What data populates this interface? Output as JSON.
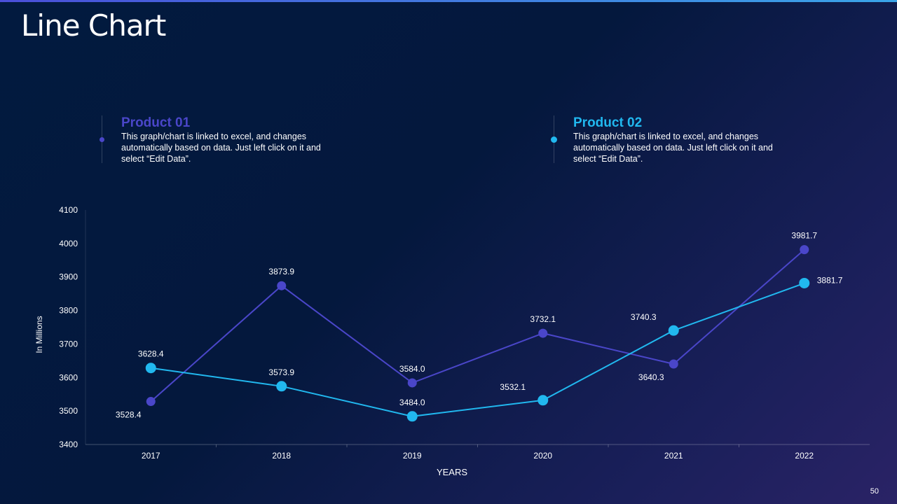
{
  "title": "Line Chart",
  "page_number": "50",
  "legend": [
    {
      "name": "Product 01",
      "description": "This graph/chart is linked to excel, and changes automatically based on data. Just left click on it and select “Edit Data”.",
      "color": "#4a46c9"
    },
    {
      "name": "Product 02",
      "description": "This graph/chart is linked to excel, and changes automatically based on data. Just left click on it and select “Edit Data”.",
      "color": "#21b8ef"
    }
  ],
  "chart_data": {
    "type": "line",
    "categories": [
      "2017",
      "2018",
      "2019",
      "2020",
      "2021",
      "2022"
    ],
    "series": [
      {
        "name": "Product 01",
        "values": [
          3528.4,
          3873.9,
          3584.0,
          3732.1,
          3640.3,
          3981.7
        ],
        "labels": [
          "3528.4",
          "3873.9",
          "3584.0",
          "3732.1",
          "3640.3",
          "3981.7"
        ],
        "color": "#4a46c9"
      },
      {
        "name": "Product 02",
        "values": [
          3628.4,
          3573.9,
          3484.0,
          3532.1,
          3740.3,
          3881.7
        ],
        "labels": [
          "3628.4",
          "3573.9",
          "3484.0",
          "3532.1",
          "3740.3",
          "3881.7"
        ],
        "color": "#21b8ef"
      }
    ],
    "title": "",
    "xlabel": "YEARS",
    "ylabel": "In Millions",
    "ylim": [
      3400,
      4100
    ],
    "yticks": [
      "3400",
      "3500",
      "3600",
      "3700",
      "3800",
      "3900",
      "4000",
      "4100"
    ],
    "grid": false,
    "legend_position": "top"
  }
}
